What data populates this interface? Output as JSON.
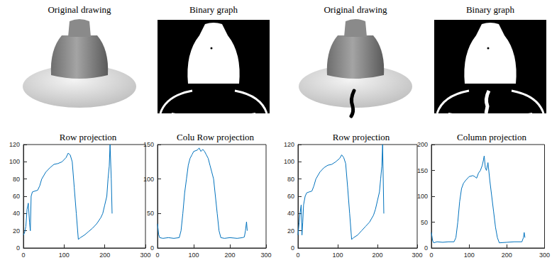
{
  "images": [
    {
      "title": "Original drawing",
      "crack": false
    },
    {
      "title": "Binary graph",
      "crack": false
    },
    {
      "title": "Original drawing",
      "crack": true
    },
    {
      "title": "Binary graph",
      "crack": true
    }
  ],
  "chart_data": [
    {
      "type": "line",
      "title": "Row projection",
      "color": "#0072bd",
      "x": [
        0,
        3,
        6,
        9,
        12,
        15,
        17,
        19,
        22,
        28,
        35,
        40,
        45,
        55,
        65,
        75,
        85,
        95,
        105,
        110,
        115,
        120,
        125,
        130,
        135,
        140,
        150,
        160,
        170,
        180,
        190,
        195,
        200,
        205,
        208,
        211,
        213,
        216,
        218
      ],
      "values": [
        15,
        18,
        25,
        45,
        52,
        30,
        20,
        60,
        65,
        66,
        67,
        72,
        80,
        88,
        93,
        97,
        98,
        100,
        105,
        110,
        108,
        100,
        70,
        40,
        10,
        12,
        15,
        19,
        23,
        28,
        35,
        40,
        50,
        60,
        80,
        95,
        120,
        80,
        40
      ],
      "xlim": [
        0,
        300
      ],
      "xticks": [
        0,
        100,
        200,
        300
      ],
      "ylim": [
        0,
        120
      ],
      "yticks": [
        0,
        20,
        40,
        60,
        80,
        100,
        120
      ]
    },
    {
      "type": "line",
      "title": "Colu Row projection",
      "color": "#0072bd",
      "x": [
        0,
        3,
        6,
        15,
        30,
        45,
        60,
        65,
        70,
        75,
        80,
        85,
        90,
        95,
        100,
        110,
        115,
        120,
        125,
        130,
        135,
        140,
        145,
        150,
        155,
        160,
        165,
        170,
        175,
        185,
        200,
        220,
        235,
        240,
        243,
        246,
        248
      ],
      "values": [
        35,
        20,
        15,
        14,
        15,
        14,
        15,
        25,
        50,
        80,
        100,
        120,
        130,
        135,
        140,
        142,
        145,
        140,
        143,
        140,
        135,
        130,
        120,
        110,
        100,
        75,
        50,
        25,
        15,
        14,
        15,
        14,
        15,
        16,
        25,
        38,
        25
      ],
      "xlim": [
        0,
        300
      ],
      "xticks": [
        0,
        100,
        200,
        300
      ],
      "ylim": [
        0,
        150
      ],
      "yticks": [
        0,
        50,
        100,
        150
      ]
    },
    {
      "type": "line",
      "title": "Row projection",
      "color": "#0072bd",
      "x": [
        0,
        3,
        5,
        8,
        10,
        12,
        14,
        18,
        22,
        28,
        35,
        40,
        45,
        55,
        65,
        75,
        85,
        95,
        105,
        110,
        115,
        120,
        125,
        130,
        135,
        140,
        150,
        160,
        170,
        180,
        190,
        195,
        200,
        205,
        208,
        211,
        213,
        216
      ],
      "values": [
        15,
        30,
        40,
        50,
        15,
        30,
        50,
        60,
        64,
        65,
        66,
        72,
        80,
        88,
        93,
        96,
        97,
        100,
        104,
        108,
        105,
        98,
        70,
        40,
        10,
        12,
        15,
        20,
        25,
        30,
        38,
        45,
        55,
        65,
        80,
        95,
        120,
        40
      ],
      "xlim": [
        0,
        300
      ],
      "xticks": [
        0,
        100,
        200,
        300
      ],
      "ylim": [
        0,
        120
      ],
      "yticks": [
        0,
        20,
        40,
        60,
        80,
        100,
        120
      ]
    },
    {
      "type": "line",
      "title": "Column projection",
      "color": "#0072bd",
      "x": [
        0,
        3,
        6,
        15,
        30,
        45,
        60,
        65,
        70,
        75,
        80,
        85,
        90,
        100,
        110,
        115,
        120,
        125,
        130,
        135,
        138,
        140,
        143,
        146,
        150,
        155,
        160,
        165,
        170,
        175,
        180,
        200,
        220,
        240,
        244,
        246,
        248
      ],
      "values": [
        30,
        15,
        10,
        12,
        11,
        12,
        12,
        20,
        50,
        90,
        115,
        125,
        130,
        138,
        140,
        138,
        135,
        145,
        150,
        160,
        170,
        178,
        155,
        150,
        165,
        130,
        100,
        70,
        40,
        20,
        10,
        11,
        12,
        12,
        20,
        30,
        20
      ],
      "xlim": [
        0,
        300
      ],
      "xticks": [
        0,
        100,
        200,
        300
      ],
      "ylim": [
        0,
        200
      ],
      "yticks": [
        0,
        50,
        100,
        150,
        200
      ]
    }
  ]
}
